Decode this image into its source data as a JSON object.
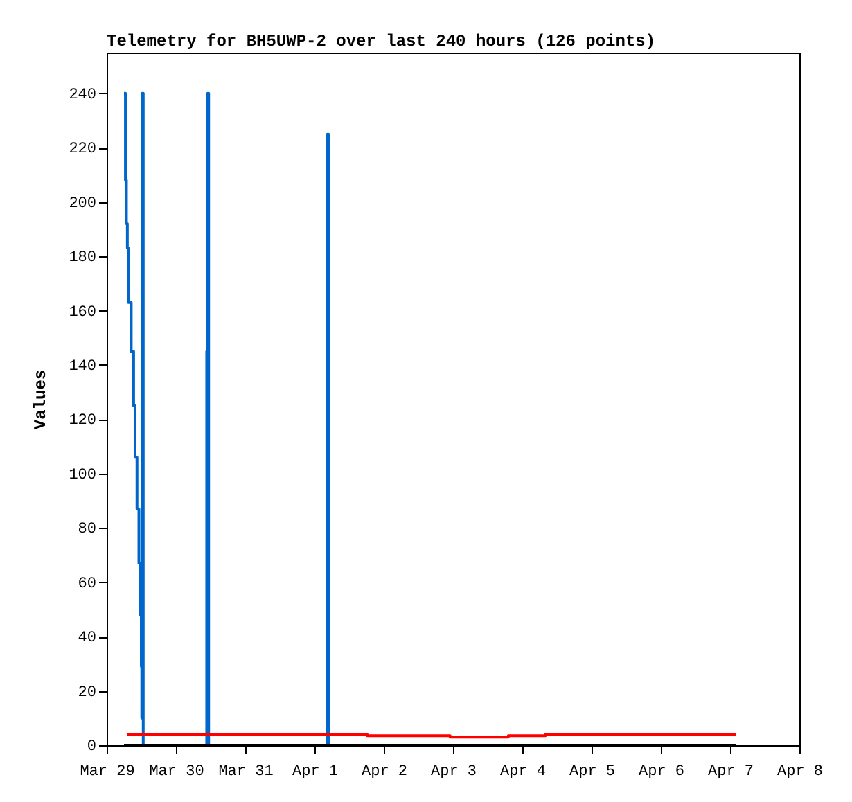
{
  "chart_data": {
    "type": "step",
    "title": "Telemetry for BH5UWP-2 over last 240 hours (126 points)",
    "ylabel": "Values",
    "xlim": [
      "--03-29",
      "--04-08"
    ],
    "xticks": [
      {
        "value": "--03-29",
        "label": "Mar 29"
      },
      {
        "value": "--03-30",
        "label": "Mar 30"
      },
      {
        "value": "--03-31",
        "label": "Mar 31"
      },
      {
        "value": "--04-01",
        "label": "Apr 1"
      },
      {
        "value": "--04-02",
        "label": "Apr 2"
      },
      {
        "value": "--04-03",
        "label": "Apr 3"
      },
      {
        "value": "--04-04",
        "label": "Apr 4"
      },
      {
        "value": "--04-05",
        "label": "Apr 5"
      },
      {
        "value": "--04-06",
        "label": "Apr 6"
      },
      {
        "value": "--04-07",
        "label": "Apr 7"
      },
      {
        "value": "--04-08",
        "label": "Apr 8"
      }
    ],
    "ylim": [
      0,
      255
    ],
    "yticks": [
      0,
      20,
      40,
      60,
      80,
      100,
      120,
      140,
      160,
      180,
      200,
      220,
      240
    ],
    "grid": false,
    "legend": false,
    "series": [
      {
        "color": "#0066cc",
        "x": [
          "--03-29T06:00",
          "--03-29T06:30",
          "--03-29T06:50",
          "--03-29T07:10",
          "--03-29T07:30",
          "--03-29T08:30",
          "--03-29T09:20",
          "--03-29T09:50",
          "--03-29T10:30",
          "--03-29T11:10",
          "--03-29T11:40",
          "--03-29T12:00",
          "--03-29T12:10",
          "--03-29T12:20",
          "--03-29T12:40",
          "--03-30T10:40",
          "--03-30T11:00",
          "--03-30T11:20",
          "--04-01T04:30",
          "--04-01T04:50"
        ],
        "values": [
          240,
          208,
          192,
          183,
          163,
          145,
          125,
          106,
          87,
          67,
          48,
          29,
          10,
          240,
          0,
          145,
          240,
          0,
          225,
          0
        ]
      },
      {
        "color": "#ff0000",
        "x": [
          "--03-29T07:10",
          "--04-01T18:15",
          "--04-02T23:00",
          "--04-03T19:10",
          "--04-04T08:00",
          "--04-07T02:00"
        ],
        "values": [
          4,
          3.5,
          3,
          3.5,
          4,
          4
        ]
      },
      {
        "color": "#000000",
        "x": [
          "--03-29T06:00",
          "--04-07T02:00"
        ],
        "values": [
          0,
          0
        ]
      }
    ]
  }
}
